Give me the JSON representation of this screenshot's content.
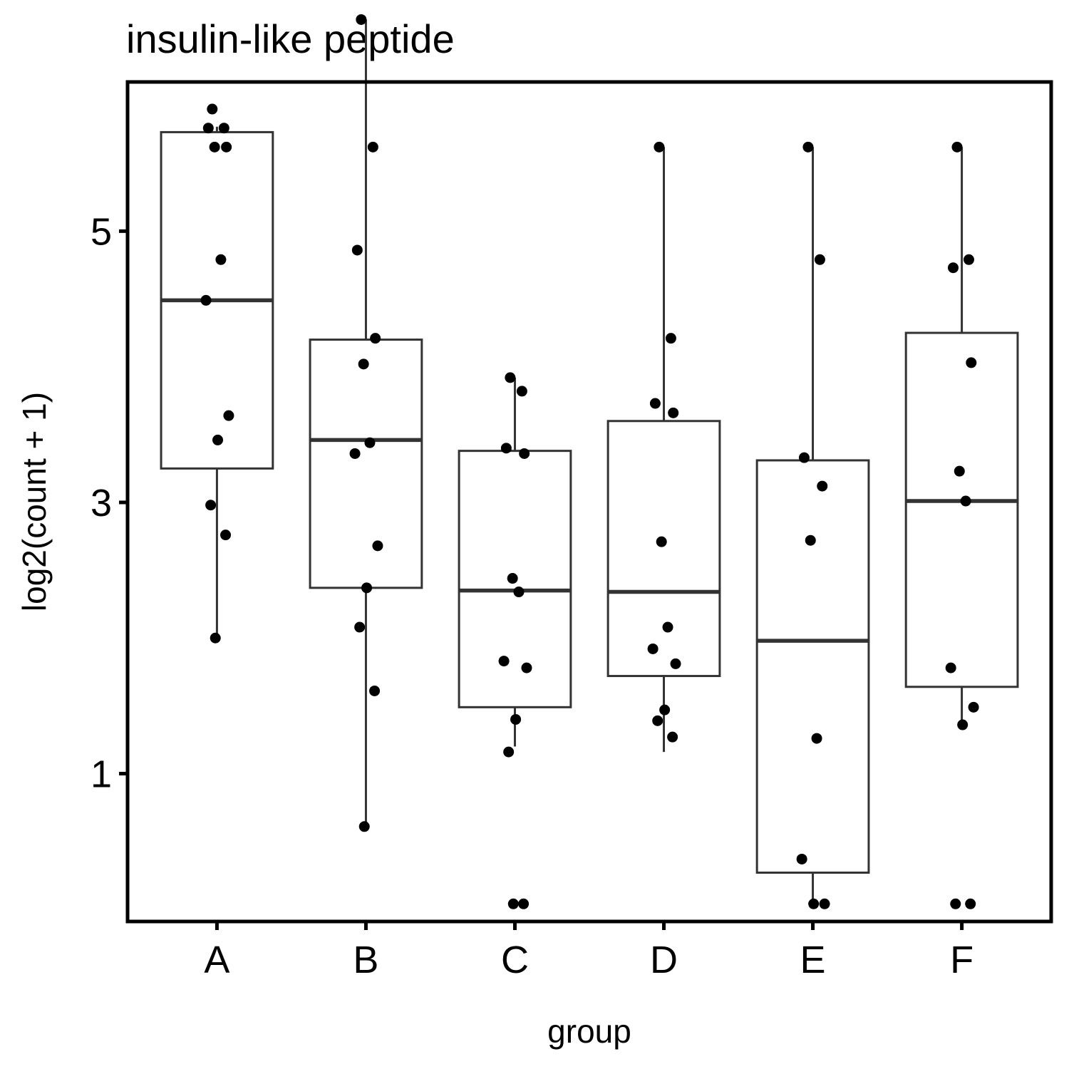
{
  "chart_data": {
    "type": "box",
    "title": "insulin-like peptide",
    "xlabel": "group",
    "ylabel": "log2(count + 1)",
    "categories": [
      "A",
      "B",
      "C",
      "D",
      "E",
      "F"
    ],
    "yticks": [
      1,
      3,
      5
    ],
    "ylim": [
      -0.09,
      6.1
    ],
    "grid": false,
    "legend": "none",
    "boxes": [
      {
        "group": "A",
        "lower_whisker": 2.0,
        "q1": 3.25,
        "median": 4.49,
        "q3": 5.73,
        "upper_whisker": 5.77
      },
      {
        "group": "B",
        "lower_whisker": 0.61,
        "q1": 2.37,
        "median": 3.46,
        "q3": 4.2,
        "upper_whisker": 6.56
      },
      {
        "group": "C",
        "lower_whisker": 1.2,
        "q1": 1.49,
        "median": 2.35,
        "q3": 3.38,
        "upper_whisker": 3.92
      },
      {
        "group": "D",
        "lower_whisker": 1.16,
        "q1": 1.72,
        "median": 2.34,
        "q3": 3.6,
        "upper_whisker": 5.62
      },
      {
        "group": "E",
        "lower_whisker": 0.04,
        "q1": 0.27,
        "median": 1.98,
        "q3": 3.31,
        "upper_whisker": 5.62
      },
      {
        "group": "F",
        "lower_whisker": 1.36,
        "q1": 1.64,
        "median": 3.01,
        "q3": 4.25,
        "upper_whisker": 5.62
      }
    ],
    "points": [
      {
        "group": "A",
        "values": [
          5.9,
          5.76,
          5.76,
          5.62,
          5.62,
          4.79,
          4.49,
          3.64,
          3.46,
          2.98,
          2.76,
          2.0
        ]
      },
      {
        "group": "B",
        "values": [
          6.56,
          5.62,
          4.86,
          4.21,
          4.02,
          3.44,
          3.36,
          2.68,
          2.37,
          2.08,
          1.61,
          0.61
        ]
      },
      {
        "group": "C",
        "values": [
          3.92,
          3.82,
          3.4,
          3.36,
          2.44,
          2.34,
          1.83,
          1.78,
          1.4,
          1.16,
          0.04,
          0.04
        ]
      },
      {
        "group": "D",
        "values": [
          5.62,
          4.21,
          3.73,
          3.66,
          2.71,
          2.08,
          1.92,
          1.81,
          1.47,
          1.39,
          1.27
        ]
      },
      {
        "group": "E",
        "values": [
          5.62,
          4.79,
          3.33,
          3.12,
          2.72,
          1.26,
          0.37,
          0.04,
          0.04
        ]
      },
      {
        "group": "F",
        "values": [
          5.62,
          4.79,
          4.73,
          4.03,
          3.23,
          3.01,
          1.78,
          1.49,
          1.36,
          0.04,
          0.04
        ]
      }
    ],
    "box_color": "#333333",
    "point_color": "#000000"
  }
}
